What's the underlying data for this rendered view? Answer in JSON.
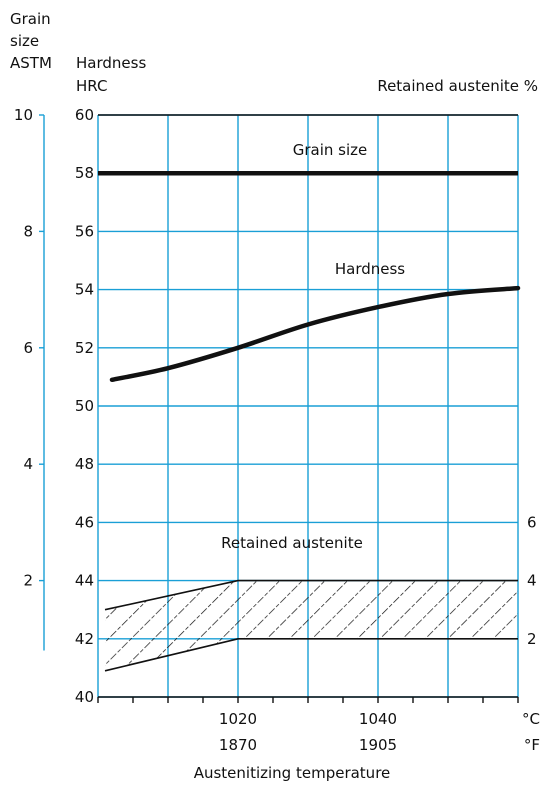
{
  "chart_data": {
    "type": "line",
    "title": "",
    "xlabel": "Austenitizing temperature",
    "x_unit_c": "°C",
    "x_unit_f": "°F",
    "x_ticks": [
      {
        "c": "1020",
        "f": "1870"
      },
      {
        "c": "1040",
        "f": "1905"
      }
    ],
    "xlim": [
      1000,
      1060
    ],
    "hrc_axis": {
      "label_line1": "Hardness",
      "label_line2": "HRC",
      "ylim": [
        40,
        60
      ],
      "ticks": [
        "40",
        "42",
        "44",
        "46",
        "48",
        "50",
        "52",
        "54",
        "56",
        "58",
        "60"
      ]
    },
    "grain_axis": {
      "label_line1": "Grain",
      "label_line2": "size",
      "label_line3": "ASTM",
      "ylim": [
        0,
        10
      ],
      "ticks": [
        "2",
        "4",
        "6",
        "8",
        "10"
      ]
    },
    "austenite_axis": {
      "label": "Retained austenite %",
      "ticks": [
        "2",
        "4",
        "6"
      ],
      "hrc_equivalent": [
        42,
        44,
        46
      ]
    },
    "series": [
      {
        "name": "Grain size",
        "x": [
          1000,
          1060
        ],
        "y": [
          58,
          58
        ]
      },
      {
        "name": "Hardness",
        "x": [
          1002,
          1010,
          1020,
          1030,
          1040,
          1050,
          1060
        ],
        "y": [
          50.9,
          51.3,
          52.0,
          52.8,
          53.4,
          53.85,
          54.05
        ]
      }
    ],
    "band": {
      "name": "Retained austenite",
      "x": [
        1001,
        1020,
        1060
      ],
      "lower": [
        40.9,
        42.0,
        42.0
      ],
      "upper": [
        43.0,
        44.0,
        44.0
      ]
    },
    "grid": true,
    "colors": {
      "grid": "#1a9fd6",
      "axis": "#111111",
      "line": "#111111"
    }
  }
}
